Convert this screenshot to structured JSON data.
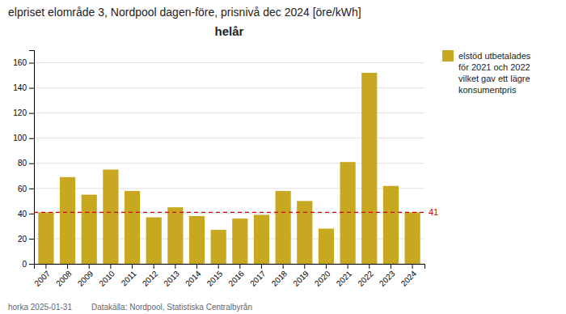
{
  "chart_data": {
    "type": "bar",
    "title": "elpriset elområde 3, Nordpool dagen-före, prisnivå dec 2024 [öre/kWh]",
    "subtitle": "helår",
    "categories": [
      "2007",
      "2008",
      "2009",
      "2010",
      "2011",
      "2012",
      "2013",
      "2014",
      "2015",
      "2016",
      "2017",
      "2018",
      "2019",
      "2020",
      "2021",
      "2022",
      "2023",
      "2024"
    ],
    "series": [
      {
        "name": "elstöd utbetalades\nför 2021 och 2022\nvilket gav ett lägre\nkonsumentpris",
        "color": "#C8A820",
        "values": [
          41,
          69,
          55,
          75,
          58,
          37,
          45,
          38,
          27,
          36,
          39,
          58,
          50,
          28,
          81,
          152,
          62,
          41
        ]
      }
    ],
    "ylim": [
      0,
      170
    ],
    "yticks": [
      0,
      20,
      40,
      60,
      80,
      100,
      120,
      140,
      160
    ],
    "grid": true,
    "legend": "upper right",
    "annotations": [
      {
        "text": "41",
        "y": 41,
        "color": "#cc0000"
      },
      {
        "text": "horka 2025-01-31"
      },
      {
        "text": "Datakälla: Nordpool, Statistiska Centralbyrån"
      }
    ]
  }
}
